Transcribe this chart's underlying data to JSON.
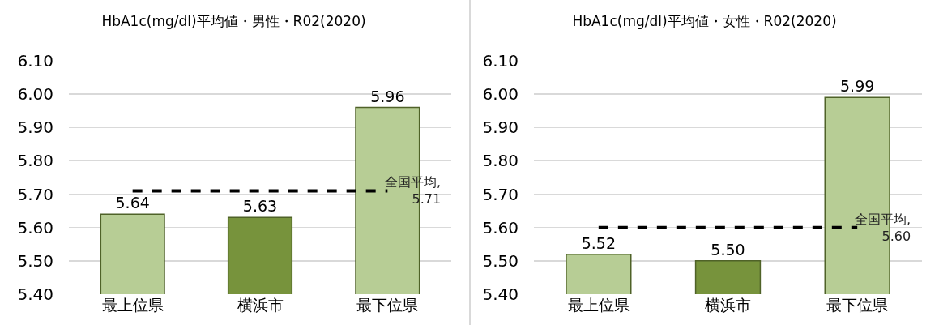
{
  "chart_data": [
    {
      "type": "bar",
      "title": "HbA1c(mg/dl)平均値・男性・R02(2020)",
      "categories": [
        "最上位県",
        "横浜市",
        "最下位県"
      ],
      "series": [
        {
          "colors": [
            "#b7cd95",
            "#77933c",
            "#b7cd95"
          ],
          "values": [
            5.64,
            5.63,
            5.96
          ],
          "value_labels": [
            "5.64",
            "5.63",
            "5.96"
          ]
        },
        {
          "type": "line",
          "color": "#000000",
          "values": [
            5.71,
            5.71,
            5.71
          ],
          "line_style": "dashed",
          "marker": "none"
        }
      ],
      "annotations": [
        {
          "text": "全国平均,\n5.71",
          "x": "最下位県",
          "y": 5.71
        }
      ],
      "ylim": [
        5.4,
        6.1
      ],
      "yticks": [
        {
          "value": 5.4,
          "label": "5.40"
        },
        {
          "value": 5.5,
          "label": "5.50"
        },
        {
          "value": 5.6,
          "label": "5.60"
        },
        {
          "value": 5.7,
          "label": "5.70"
        },
        {
          "value": 5.8,
          "label": "5.80"
        },
        {
          "value": 5.9,
          "label": "5.90"
        },
        {
          "value": 6.0,
          "label": "6.00"
        },
        {
          "value": 6.1,
          "label": "6.10"
        }
      ],
      "grid": "y"
    },
    {
      "type": "bar",
      "title": "HbA1c(mg/dl)平均値・女性・R02(2020)",
      "categories": [
        "最上位県",
        "横浜市",
        "最下位県"
      ],
      "series": [
        {
          "colors": [
            "#b7cd95",
            "#77933c",
            "#b7cd95"
          ],
          "values": [
            5.52,
            5.5,
            5.99
          ],
          "value_labels": [
            "5.52",
            "5.50",
            "5.99"
          ]
        },
        {
          "type": "line",
          "color": "#000000",
          "values": [
            5.6,
            5.6,
            5.6
          ],
          "line_style": "dashed",
          "marker": "none"
        }
      ],
      "annotations": [
        {
          "text": "全国平均,\n5.60",
          "x": "最下位県",
          "y": 5.6
        }
      ],
      "ylim": [
        5.4,
        6.1
      ],
      "yticks": [
        {
          "value": 5.4,
          "label": "5.40"
        },
        {
          "value": 5.5,
          "label": "5.50"
        },
        {
          "value": 5.6,
          "label": "5.60"
        },
        {
          "value": 5.7,
          "label": "5.70"
        },
        {
          "value": 5.8,
          "label": "5.80"
        },
        {
          "value": 5.9,
          "label": "5.90"
        },
        {
          "value": 6.0,
          "label": "6.00"
        },
        {
          "value": 6.1,
          "label": "6.10"
        }
      ],
      "grid": "y"
    }
  ]
}
